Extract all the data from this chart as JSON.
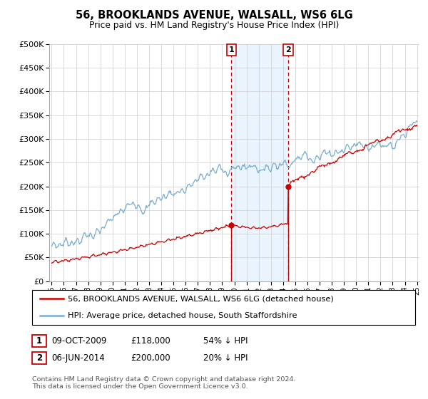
{
  "title": "56, BROOKLANDS AVENUE, WALSALL, WS6 6LG",
  "subtitle": "Price paid vs. HM Land Registry's House Price Index (HPI)",
  "legend_house": "56, BROOKLANDS AVENUE, WALSALL, WS6 6LG (detached house)",
  "legend_hpi": "HPI: Average price, detached house, South Staffordshire",
  "house_color": "#cc0000",
  "hpi_color": "#7aadcf",
  "vline_color": "#cc0000",
  "vbox_fill": "#ddeeff",
  "transaction1_year": 2009.75,
  "transaction1_price": 118000,
  "transaction1_label": "1",
  "transaction1_date": "09-OCT-2009",
  "transaction1_hpi_pct": "54% ↓ HPI",
  "transaction2_year": 2014.42,
  "transaction2_price": 200000,
  "transaction2_label": "2",
  "transaction2_date": "06-JUN-2014",
  "transaction2_hpi_pct": "20% ↓ HPI",
  "footer": "Contains HM Land Registry data © Crown copyright and database right 2024.\nThis data is licensed under the Open Government Licence v3.0.",
  "ylim": [
    0,
    500000
  ],
  "yticks": [
    0,
    50000,
    100000,
    150000,
    200000,
    250000,
    300000,
    350000,
    400000,
    450000,
    500000
  ],
  "year_start": 1995,
  "year_end": 2025,
  "xlim_left": 1994.8,
  "xlim_right": 2025.2
}
